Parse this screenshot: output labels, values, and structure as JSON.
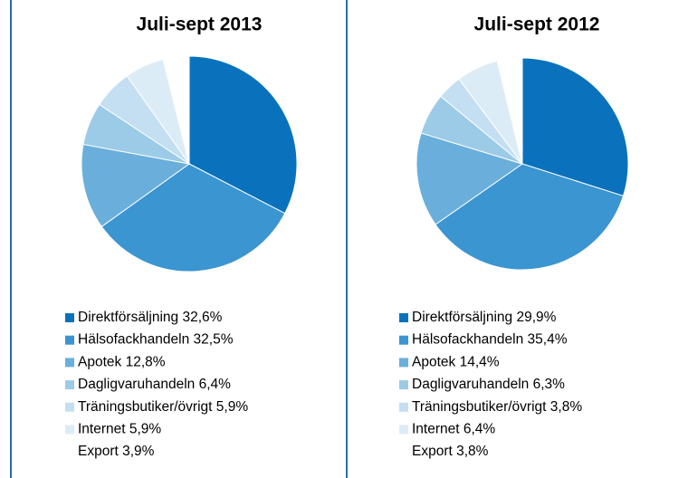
{
  "chart_data": [
    {
      "type": "pie",
      "title": "Juli-sept 2013",
      "categories": [
        "Direktförsäljning",
        "Hälsofackhandeln",
        "Apotek",
        "Dagligvaruhandeln",
        "Träningsbutiker/övrigt",
        "Internet",
        "Export"
      ],
      "values": [
        32.6,
        32.5,
        12.8,
        6.4,
        5.9,
        5.9,
        3.9
      ],
      "value_labels": [
        "32,6%",
        "32,5%",
        "12,8%",
        "6,4%",
        "5,9%",
        "5,9%",
        "3,9%"
      ],
      "colors": [
        "#0a72bd",
        "#3a95d1",
        "#6aafdb",
        "#9ccbe7",
        "#c3dff1",
        "#dcecf7",
        "#ffffff"
      ]
    },
    {
      "type": "pie",
      "title": "Juli-sept 2012",
      "categories": [
        "Direktförsäljning",
        "Hälsofackhandeln",
        "Apotek",
        "Dagligvaruhandeln",
        "Träningsbutiker/övrigt",
        "Internet",
        "Export"
      ],
      "values": [
        29.9,
        35.4,
        14.4,
        6.3,
        3.8,
        6.4,
        3.8
      ],
      "value_labels": [
        "29,9%",
        "35,4%",
        "14,4%",
        "6,3%",
        "3,8%",
        "6,4%",
        "3,8%"
      ],
      "colors": [
        "#0a72bd",
        "#3a95d1",
        "#6aafdb",
        "#9ccbe7",
        "#c3dff1",
        "#dcecf7",
        "#ffffff"
      ]
    }
  ]
}
